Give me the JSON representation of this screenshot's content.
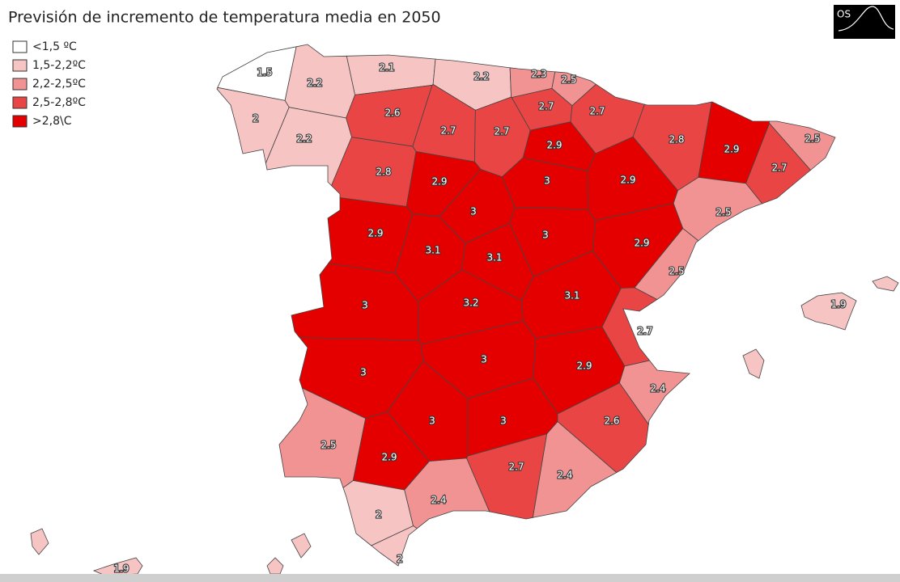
{
  "title": "Previsión de incremento de temperatura media en 2050",
  "logo": "OS",
  "legend": [
    {
      "label": "<1,5 ºC",
      "color": "#ffffff"
    },
    {
      "label": "1,5-2,2ºC",
      "color": "#f7c4c4"
    },
    {
      "label": "2,2-2,5ºC",
      "color": "#f19393"
    },
    {
      "label": "2,5-2,8ºC",
      "color": "#e94545"
    },
    {
      "label": ">2,8\\C",
      "color": "#e50000"
    }
  ],
  "provinces": [
    {
      "value": 1.5,
      "color": "#ffffff"
    },
    {
      "value": 2.2,
      "color": "#f7c4c4"
    },
    {
      "value": 2.1,
      "color": "#f7c4c4"
    },
    {
      "value": 2.2,
      "color": "#f7c4c4"
    },
    {
      "value": 2.3,
      "color": "#f19393"
    },
    {
      "value": 2.5,
      "color": "#f19393"
    },
    {
      "value": 2,
      "color": "#f7c4c4"
    },
    {
      "value": 2.6,
      "color": "#e94545"
    },
    {
      "value": 2.7,
      "color": "#e94545"
    },
    {
      "value": 2.7,
      "color": "#e94545"
    },
    {
      "value": 2.7,
      "color": "#e94545"
    },
    {
      "value": 2.7,
      "color": "#e94545"
    },
    {
      "value": 2.2,
      "color": "#f7c4c4"
    },
    {
      "value": 2.9,
      "color": "#e50000"
    },
    {
      "value": 2.8,
      "color": "#e94545"
    },
    {
      "value": 2.9,
      "color": "#e50000"
    },
    {
      "value": 2.5,
      "color": "#f19393"
    },
    {
      "value": 2.8,
      "color": "#e94545"
    },
    {
      "value": 2.9,
      "color": "#e50000"
    },
    {
      "value": 3,
      "color": "#e50000"
    },
    {
      "value": 2.9,
      "color": "#e50000"
    },
    {
      "value": 2.7,
      "color": "#e94545"
    },
    {
      "value": 2.5,
      "color": "#f19393"
    },
    {
      "value": 3,
      "color": "#e50000"
    },
    {
      "value": 2.9,
      "color": "#e50000"
    },
    {
      "value": 3.1,
      "color": "#e50000"
    },
    {
      "value": 3,
      "color": "#e50000"
    },
    {
      "value": 3.1,
      "color": "#e50000"
    },
    {
      "value": 2.9,
      "color": "#e50000"
    },
    {
      "value": 2.5,
      "color": "#f19393"
    },
    {
      "value": 3,
      "color": "#e50000"
    },
    {
      "value": 3.2,
      "color": "#e50000"
    },
    {
      "value": 3.1,
      "color": "#e50000"
    },
    {
      "value": 1.9,
      "color": "#f7c4c4"
    },
    {
      "value": 2.7,
      "color": "#e94545"
    },
    {
      "value": 3,
      "color": "#e50000"
    },
    {
      "value": 3,
      "color": "#e50000"
    },
    {
      "value": 2.9,
      "color": "#e50000"
    },
    {
      "value": 2.4,
      "color": "#f19393"
    },
    {
      "value": 3,
      "color": "#e50000"
    },
    {
      "value": 3,
      "color": "#e50000"
    },
    {
      "value": 2.6,
      "color": "#e94545"
    },
    {
      "value": 2.5,
      "color": "#f19393"
    },
    {
      "value": 2.9,
      "color": "#e50000"
    },
    {
      "value": 2.7,
      "color": "#e94545"
    },
    {
      "value": 2.4,
      "color": "#f19393"
    },
    {
      "value": 2.4,
      "color": "#f19393"
    },
    {
      "value": 2,
      "color": "#f7c4c4"
    },
    {
      "value": 2,
      "color": "#f7c4c4"
    },
    {
      "value": 1.9,
      "color": "#f7c4c4"
    }
  ]
}
